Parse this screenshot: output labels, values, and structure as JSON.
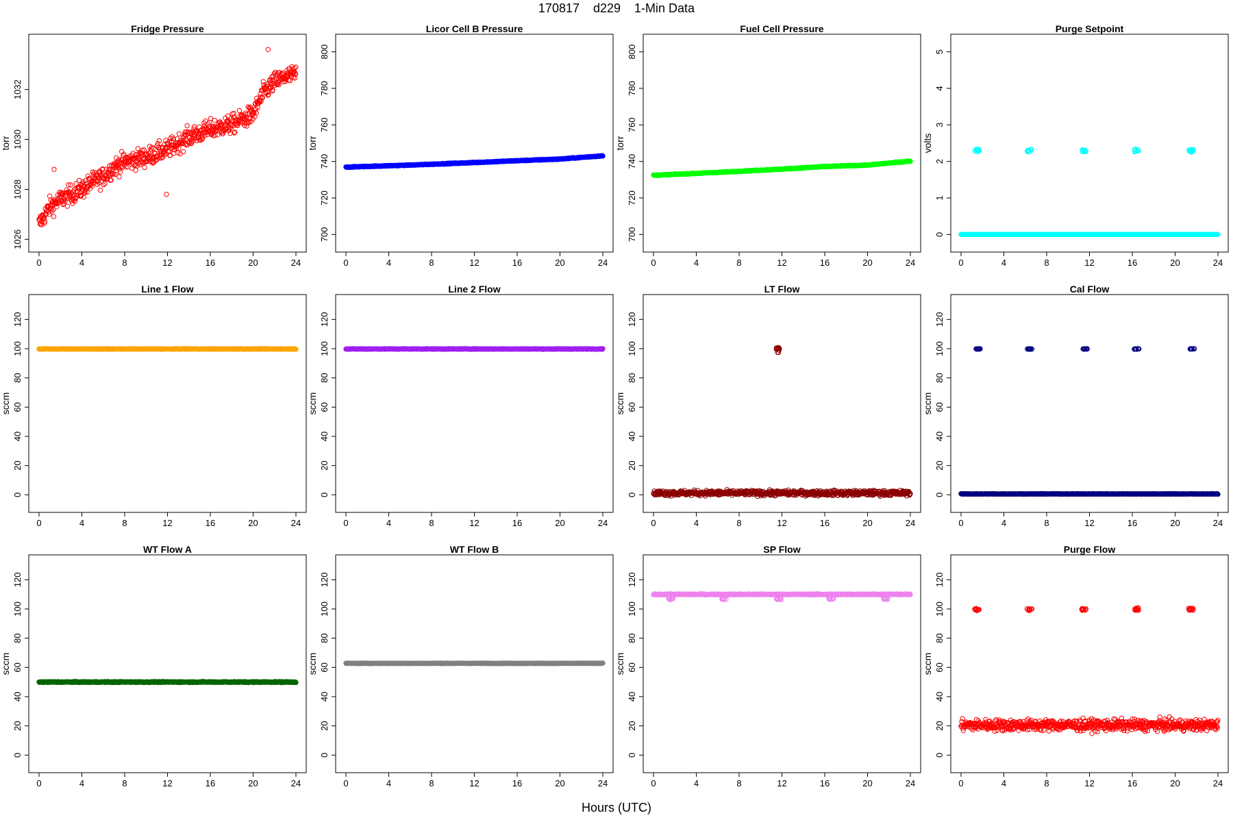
{
  "title": "170817    d229    1-Min Data",
  "x_axis_label": "Hours (UTC)",
  "chart_data": [
    {
      "type": "scatter",
      "title": "Fridge Pressure",
      "ylabel": "torr",
      "color": "#ff0000",
      "marker": "open-circle",
      "xlim": [
        0,
        24
      ],
      "ylim": [
        1025.9,
        1033.8
      ],
      "xticks": [
        0,
        4,
        8,
        12,
        16,
        20,
        24
      ],
      "yticks": [
        1026,
        1028,
        1030,
        1032
      ],
      "trend": [
        [
          0,
          1026.6
        ],
        [
          1,
          1027.3
        ],
        [
          2,
          1027.6
        ],
        [
          3,
          1027.8
        ],
        [
          4,
          1028.0
        ],
        [
          5,
          1028.3
        ],
        [
          6,
          1028.5
        ],
        [
          7,
          1028.9
        ],
        [
          8,
          1029.1
        ],
        [
          10,
          1029.3
        ],
        [
          12,
          1029.6
        ],
        [
          14,
          1030.1
        ],
        [
          16,
          1030.4
        ],
        [
          18,
          1030.6
        ],
        [
          20,
          1031.0
        ],
        [
          21,
          1031.9
        ],
        [
          22,
          1032.3
        ],
        [
          23,
          1032.5
        ],
        [
          24,
          1032.6
        ]
      ],
      "spread": 0.35,
      "notable_points": [
        [
          21.4,
          1033.6
        ],
        [
          11.9,
          1027.8
        ],
        [
          1.4,
          1028.8
        ]
      ]
    },
    {
      "type": "scatter",
      "title": "Licor Cell B Pressure",
      "ylabel": "torr",
      "color": "#0000ff",
      "marker": "open-circle",
      "xlim": [
        0,
        24
      ],
      "ylim": [
        696,
        804
      ],
      "xticks": [
        0,
        4,
        8,
        12,
        16,
        20,
        24
      ],
      "yticks": [
        700,
        720,
        740,
        760,
        780,
        800
      ],
      "trend": [
        [
          0,
          736.9
        ],
        [
          6,
          738.0
        ],
        [
          12,
          739.4
        ],
        [
          16,
          740.4
        ],
        [
          20,
          741.3
        ],
        [
          24,
          743.1
        ]
      ],
      "spread": 0.2
    },
    {
      "type": "scatter",
      "title": "Fuel Cell Pressure",
      "ylabel": "torr",
      "color": "#00ff00",
      "marker": "open-circle",
      "xlim": [
        0,
        24
      ],
      "ylim": [
        696,
        804
      ],
      "xticks": [
        0,
        4,
        8,
        12,
        16,
        20,
        24
      ],
      "yticks": [
        700,
        720,
        740,
        760,
        780,
        800
      ],
      "trend": [
        [
          0,
          732.4
        ],
        [
          6,
          734.0
        ],
        [
          12,
          735.8
        ],
        [
          16,
          737.2
        ],
        [
          20,
          738.0
        ],
        [
          24,
          740.2
        ]
      ],
      "spread": 0.2
    },
    {
      "type": "scatter",
      "title": "Purge Setpoint",
      "ylabel": "volts",
      "color": "#00ffff",
      "marker": "open-circle",
      "xlim": [
        0,
        24
      ],
      "ylim": [
        -0.2,
        5.2
      ],
      "xticks": [
        0,
        4,
        8,
        12,
        16,
        20,
        24
      ],
      "yticks": [
        0,
        1,
        2,
        3,
        4,
        5
      ],
      "trend": [
        [
          0,
          0
        ],
        [
          24,
          0
        ]
      ],
      "spread": 0,
      "events": [
        1.5,
        6.4,
        11.5,
        16.4,
        21.5
      ],
      "event_value": 2.3,
      "event_spread": 0.04
    },
    {
      "type": "scatter",
      "title": "Line 1 Flow",
      "ylabel": "sccm",
      "color": "#ffa500",
      "marker": "open-circle",
      "xlim": [
        0,
        24
      ],
      "ylim": [
        -5,
        130
      ],
      "xticks": [
        0,
        4,
        8,
        12,
        16,
        20,
        24
      ],
      "yticks": [
        0,
        20,
        40,
        60,
        80,
        100,
        120
      ],
      "trend": [
        [
          0,
          99.8
        ],
        [
          24,
          99.8
        ]
      ],
      "spread": 0.2
    },
    {
      "type": "scatter",
      "title": "Line 2 Flow",
      "ylabel": "sccm",
      "color": "#a020f0",
      "marker": "open-circle",
      "xlim": [
        0,
        24
      ],
      "ylim": [
        -5,
        130
      ],
      "xticks": [
        0,
        4,
        8,
        12,
        16,
        20,
        24
      ],
      "yticks": [
        0,
        20,
        40,
        60,
        80,
        100,
        120
      ],
      "trend": [
        [
          0,
          99.8
        ],
        [
          24,
          99.8
        ]
      ],
      "spread": 0.2
    },
    {
      "type": "scatter",
      "title": "LT Flow",
      "ylabel": "sccm",
      "color": "#8b0000",
      "marker": "open-circle",
      "xlim": [
        0,
        24
      ],
      "ylim": [
        -5,
        130
      ],
      "xticks": [
        0,
        4,
        8,
        12,
        16,
        20,
        24
      ],
      "yticks": [
        0,
        20,
        40,
        60,
        80,
        100,
        120
      ],
      "trend": [
        [
          0,
          1.2
        ],
        [
          24,
          1.2
        ]
      ],
      "spread": 1.6,
      "events": [
        11.7
      ],
      "event_value": 99.5,
      "event_spread": 1.6
    },
    {
      "type": "scatter",
      "title": "Cal Flow",
      "ylabel": "sccm",
      "color": "#000080",
      "marker": "open-circle",
      "xlim": [
        0,
        24
      ],
      "ylim": [
        -5,
        130
      ],
      "xticks": [
        0,
        4,
        8,
        12,
        16,
        20,
        24
      ],
      "yticks": [
        0,
        20,
        40,
        60,
        80,
        100,
        120
      ],
      "trend": [
        [
          0,
          0.6
        ],
        [
          24,
          0.6
        ]
      ],
      "spread": 0.15,
      "events": [
        1.6,
        6.4,
        11.6,
        16.4,
        21.6
      ],
      "event_value": 99.8,
      "event_spread": 0.2
    },
    {
      "type": "scatter",
      "title": "WT Flow A",
      "ylabel": "sccm",
      "color": "#006400",
      "marker": "open-circle",
      "xlim": [
        0,
        24
      ],
      "ylim": [
        -5,
        130
      ],
      "xticks": [
        0,
        4,
        8,
        12,
        16,
        20,
        24
      ],
      "yticks": [
        0,
        20,
        40,
        60,
        80,
        100,
        120
      ],
      "trend": [
        [
          0,
          50.0
        ],
        [
          24,
          50.0
        ]
      ],
      "spread": 0.3
    },
    {
      "type": "scatter",
      "title": "WT Flow B",
      "ylabel": "sccm",
      "color": "#808080",
      "marker": "open-circle",
      "xlim": [
        0,
        24
      ],
      "ylim": [
        -5,
        130
      ],
      "xticks": [
        0,
        4,
        8,
        12,
        16,
        20,
        24
      ],
      "yticks": [
        0,
        20,
        40,
        60,
        80,
        100,
        120
      ],
      "trend": [
        [
          0,
          62.8
        ],
        [
          24,
          62.8
        ]
      ],
      "spread": 0.15
    },
    {
      "type": "scatter",
      "title": "SP Flow",
      "ylabel": "sccm",
      "color": "#ee82ee",
      "marker": "open-circle",
      "xlim": [
        0,
        24
      ],
      "ylim": [
        -5,
        130
      ],
      "xticks": [
        0,
        4,
        8,
        12,
        16,
        20,
        24
      ],
      "yticks": [
        0,
        20,
        40,
        60,
        80,
        100,
        120
      ],
      "trend": [
        [
          0,
          110.0
        ],
        [
          24,
          110.0
        ]
      ],
      "spread": 0.3,
      "events": [
        1.6,
        6.6,
        11.7,
        16.6,
        21.7
      ],
      "event_value": 107.0,
      "event_spread": 0.5
    },
    {
      "type": "scatter",
      "title": "Purge Flow",
      "ylabel": "sccm",
      "color": "#ff0000",
      "marker": "open-circle",
      "xlim": [
        0,
        24
      ],
      "ylim": [
        -5,
        130
      ],
      "xticks": [
        0,
        4,
        8,
        12,
        16,
        20,
        24
      ],
      "yticks": [
        0,
        20,
        40,
        60,
        80,
        100,
        120
      ],
      "trend": [
        [
          0,
          20.5
        ],
        [
          24,
          20.5
        ]
      ],
      "spread": 3.5,
      "events": [
        1.5,
        6.4,
        11.5,
        16.4,
        21.5
      ],
      "event_value": 99.8,
      "event_spread": 0.7
    }
  ]
}
